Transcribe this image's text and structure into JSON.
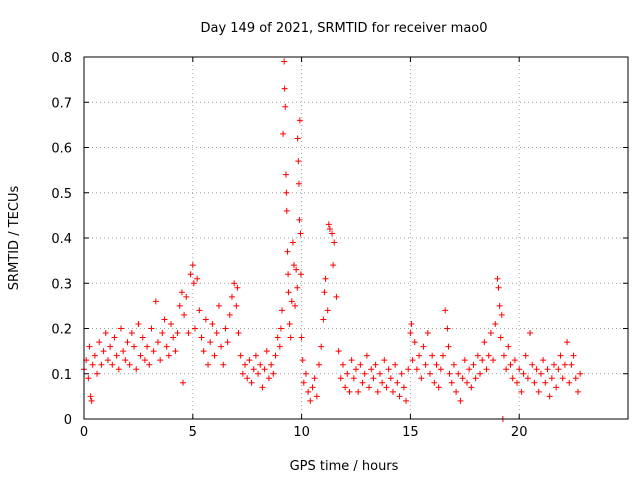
{
  "chart_data": {
    "type": "scatter",
    "title": "Day 149 of 2021, SRMTID for receiver mao0",
    "xlabel": "GPS time / hours",
    "ylabel": "SRMTID / TECUs",
    "xlim": [
      0,
      25
    ],
    "ylim": [
      0,
      0.8
    ],
    "x_ticks": [
      0,
      5,
      10,
      15,
      20
    ],
    "x_tick_labels": [
      "0",
      "5",
      "10",
      "15",
      "20"
    ],
    "y_ticks": [
      0,
      0.1,
      0.2,
      0.3,
      0.4,
      0.5,
      0.6,
      0.7,
      0.8
    ],
    "y_tick_labels": [
      "0",
      "0.1",
      "0.2",
      "0.3",
      "0.4",
      "0.5",
      "0.6",
      "0.7",
      "0.8"
    ],
    "grid": true,
    "marker": "plus",
    "color": "#ff0000",
    "series": [
      {
        "name": "SRMTID",
        "points": [
          [
            0.0,
            0.11
          ],
          [
            0.1,
            0.13
          ],
          [
            0.2,
            0.09
          ],
          [
            0.25,
            0.16
          ],
          [
            0.3,
            0.05
          ],
          [
            0.35,
            0.04
          ],
          [
            0.4,
            0.12
          ],
          [
            0.5,
            0.14
          ],
          [
            0.6,
            0.1
          ],
          [
            0.7,
            0.17
          ],
          [
            0.8,
            0.12
          ],
          [
            0.9,
            0.15
          ],
          [
            1.0,
            0.19
          ],
          [
            1.1,
            0.13
          ],
          [
            1.2,
            0.16
          ],
          [
            1.3,
            0.12
          ],
          [
            1.4,
            0.18
          ],
          [
            1.5,
            0.14
          ],
          [
            1.6,
            0.11
          ],
          [
            1.7,
            0.2
          ],
          [
            1.8,
            0.15
          ],
          [
            1.9,
            0.13
          ],
          [
            2.0,
            0.17
          ],
          [
            2.1,
            0.12
          ],
          [
            2.2,
            0.19
          ],
          [
            2.3,
            0.16
          ],
          [
            2.4,
            0.11
          ],
          [
            2.5,
            0.21
          ],
          [
            2.6,
            0.14
          ],
          [
            2.7,
            0.18
          ],
          [
            2.8,
            0.13
          ],
          [
            2.9,
            0.16
          ],
          [
            3.0,
            0.12
          ],
          [
            3.1,
            0.2
          ],
          [
            3.2,
            0.15
          ],
          [
            3.3,
            0.26
          ],
          [
            3.4,
            0.17
          ],
          [
            3.5,
            0.13
          ],
          [
            3.6,
            0.19
          ],
          [
            3.7,
            0.22
          ],
          [
            3.8,
            0.16
          ],
          [
            3.9,
            0.14
          ],
          [
            4.0,
            0.21
          ],
          [
            4.1,
            0.18
          ],
          [
            4.2,
            0.15
          ],
          [
            4.3,
            0.19
          ],
          [
            4.4,
            0.25
          ],
          [
            4.5,
            0.28
          ],
          [
            4.55,
            0.08
          ],
          [
            4.6,
            0.23
          ],
          [
            4.7,
            0.27
          ],
          [
            4.8,
            0.19
          ],
          [
            4.9,
            0.32
          ],
          [
            5.0,
            0.34
          ],
          [
            5.05,
            0.3
          ],
          [
            5.1,
            0.2
          ],
          [
            5.2,
            0.31
          ],
          [
            5.3,
            0.24
          ],
          [
            5.4,
            0.18
          ],
          [
            5.5,
            0.15
          ],
          [
            5.6,
            0.22
          ],
          [
            5.7,
            0.12
          ],
          [
            5.8,
            0.17
          ],
          [
            5.9,
            0.21
          ],
          [
            6.0,
            0.14
          ],
          [
            6.1,
            0.19
          ],
          [
            6.2,
            0.25
          ],
          [
            6.3,
            0.16
          ],
          [
            6.4,
            0.12
          ],
          [
            6.5,
            0.2
          ],
          [
            6.6,
            0.17
          ],
          [
            6.7,
            0.23
          ],
          [
            6.8,
            0.27
          ],
          [
            6.9,
            0.3
          ],
          [
            7.0,
            0.25
          ],
          [
            7.05,
            0.29
          ],
          [
            7.1,
            0.19
          ],
          [
            7.2,
            0.14
          ],
          [
            7.3,
            0.1
          ],
          [
            7.4,
            0.12
          ],
          [
            7.5,
            0.09
          ],
          [
            7.6,
            0.13
          ],
          [
            7.7,
            0.08
          ],
          [
            7.8,
            0.11
          ],
          [
            7.9,
            0.14
          ],
          [
            8.0,
            0.1
          ],
          [
            8.1,
            0.12
          ],
          [
            8.2,
            0.07
          ],
          [
            8.3,
            0.11
          ],
          [
            8.4,
            0.15
          ],
          [
            8.5,
            0.09
          ],
          [
            8.6,
            0.12
          ],
          [
            8.7,
            0.1
          ],
          [
            8.8,
            0.14
          ],
          [
            8.9,
            0.18
          ],
          [
            9.0,
            0.16
          ],
          [
            9.05,
            0.2
          ],
          [
            9.1,
            0.24
          ],
          [
            9.15,
            0.63
          ],
          [
            9.2,
            0.79
          ],
          [
            9.22,
            0.73
          ],
          [
            9.25,
            0.69
          ],
          [
            9.28,
            0.54
          ],
          [
            9.3,
            0.5
          ],
          [
            9.32,
            0.46
          ],
          [
            9.35,
            0.37
          ],
          [
            9.38,
            0.32
          ],
          [
            9.4,
            0.28
          ],
          [
            9.45,
            0.21
          ],
          [
            9.5,
            0.18
          ],
          [
            9.55,
            0.26
          ],
          [
            9.6,
            0.39
          ],
          [
            9.65,
            0.34
          ],
          [
            9.7,
            0.25
          ],
          [
            9.75,
            0.33
          ],
          [
            9.8,
            0.29
          ],
          [
            9.82,
            0.62
          ],
          [
            9.85,
            0.57
          ],
          [
            9.88,
            0.52
          ],
          [
            9.9,
            0.44
          ],
          [
            9.92,
            0.66
          ],
          [
            9.95,
            0.41
          ],
          [
            9.97,
            0.32
          ],
          [
            10.0,
            0.18
          ],
          [
            10.05,
            0.13
          ],
          [
            10.1,
            0.08
          ],
          [
            10.2,
            0.1
          ],
          [
            10.3,
            0.06
          ],
          [
            10.4,
            0.04
          ],
          [
            10.5,
            0.07
          ],
          [
            10.6,
            0.09
          ],
          [
            10.7,
            0.05
          ],
          [
            10.8,
            0.12
          ],
          [
            10.9,
            0.16
          ],
          [
            11.0,
            0.22
          ],
          [
            11.05,
            0.28
          ],
          [
            11.1,
            0.31
          ],
          [
            11.2,
            0.24
          ],
          [
            11.25,
            0.43
          ],
          [
            11.3,
            0.42
          ],
          [
            11.4,
            0.41
          ],
          [
            11.45,
            0.34
          ],
          [
            11.5,
            0.39
          ],
          [
            11.6,
            0.27
          ],
          [
            11.7,
            0.15
          ],
          [
            11.8,
            0.09
          ],
          [
            11.9,
            0.12
          ],
          [
            12.0,
            0.07
          ],
          [
            12.1,
            0.1
          ],
          [
            12.2,
            0.06
          ],
          [
            12.3,
            0.13
          ],
          [
            12.4,
            0.09
          ],
          [
            12.5,
            0.11
          ],
          [
            12.6,
            0.06
          ],
          [
            12.7,
            0.12
          ],
          [
            12.8,
            0.08
          ],
          [
            12.9,
            0.1
          ],
          [
            13.0,
            0.14
          ],
          [
            13.1,
            0.07
          ],
          [
            13.2,
            0.11
          ],
          [
            13.3,
            0.09
          ],
          [
            13.4,
            0.12
          ],
          [
            13.5,
            0.06
          ],
          [
            13.6,
            0.1
          ],
          [
            13.7,
            0.08
          ],
          [
            13.8,
            0.13
          ],
          [
            13.9,
            0.07
          ],
          [
            14.0,
            0.11
          ],
          [
            14.1,
            0.09
          ],
          [
            14.2,
            0.06
          ],
          [
            14.3,
            0.12
          ],
          [
            14.4,
            0.08
          ],
          [
            14.5,
            0.05
          ],
          [
            14.6,
            0.1
          ],
          [
            14.7,
            0.07
          ],
          [
            14.8,
            0.04
          ],
          [
            14.9,
            0.11
          ],
          [
            15.0,
            0.19
          ],
          [
            15.05,
            0.21
          ],
          [
            15.1,
            0.13
          ],
          [
            15.2,
            0.17
          ],
          [
            15.3,
            0.11
          ],
          [
            15.4,
            0.14
          ],
          [
            15.5,
            0.09
          ],
          [
            15.6,
            0.16
          ],
          [
            15.7,
            0.12
          ],
          [
            15.8,
            0.19
          ],
          [
            15.9,
            0.1
          ],
          [
            16.0,
            0.14
          ],
          [
            16.1,
            0.08
          ],
          [
            16.2,
            0.12
          ],
          [
            16.3,
            0.07
          ],
          [
            16.4,
            0.11
          ],
          [
            16.5,
            0.14
          ],
          [
            16.6,
            0.24
          ],
          [
            16.7,
            0.2
          ],
          [
            16.75,
            0.16
          ],
          [
            16.8,
            0.1
          ],
          [
            16.9,
            0.08
          ],
          [
            17.0,
            0.12
          ],
          [
            17.1,
            0.06
          ],
          [
            17.2,
            0.1
          ],
          [
            17.3,
            0.04
          ],
          [
            17.4,
            0.09
          ],
          [
            17.5,
            0.13
          ],
          [
            17.6,
            0.08
          ],
          [
            17.7,
            0.11
          ],
          [
            17.8,
            0.07
          ],
          [
            17.9,
            0.12
          ],
          [
            18.0,
            0.09
          ],
          [
            18.1,
            0.14
          ],
          [
            18.2,
            0.1
          ],
          [
            18.3,
            0.13
          ],
          [
            18.4,
            0.17
          ],
          [
            18.5,
            0.11
          ],
          [
            18.6,
            0.14
          ],
          [
            18.7,
            0.19
          ],
          [
            18.8,
            0.13
          ],
          [
            18.9,
            0.21
          ],
          [
            19.0,
            0.31
          ],
          [
            19.05,
            0.29
          ],
          [
            19.1,
            0.25
          ],
          [
            19.15,
            0.18
          ],
          [
            19.2,
            0.23
          ],
          [
            19.3,
            0.14
          ],
          [
            19.4,
            0.11
          ],
          [
            19.5,
            0.16
          ],
          [
            19.6,
            0.12
          ],
          [
            19.7,
            0.09
          ],
          [
            19.8,
            0.13
          ],
          [
            19.9,
            0.08
          ],
          [
            20.0,
            0.11
          ],
          [
            20.1,
            0.06
          ],
          [
            20.2,
            0.1
          ],
          [
            20.3,
            0.14
          ],
          [
            20.4,
            0.09
          ],
          [
            20.5,
            0.19
          ],
          [
            20.6,
            0.12
          ],
          [
            20.7,
            0.08
          ],
          [
            20.8,
            0.11
          ],
          [
            20.9,
            0.06
          ],
          [
            21.0,
            0.1
          ],
          [
            21.1,
            0.13
          ],
          [
            21.2,
            0.08
          ],
          [
            21.3,
            0.11
          ],
          [
            21.4,
            0.05
          ],
          [
            21.5,
            0.09
          ],
          [
            21.6,
            0.12
          ],
          [
            21.7,
            0.07
          ],
          [
            21.8,
            0.11
          ],
          [
            21.9,
            0.14
          ],
          [
            22.0,
            0.09
          ],
          [
            22.1,
            0.12
          ],
          [
            22.2,
            0.17
          ],
          [
            22.3,
            0.08
          ],
          [
            22.4,
            0.12
          ],
          [
            22.5,
            0.14
          ],
          [
            22.6,
            0.09
          ],
          [
            22.7,
            0.06
          ],
          [
            22.8,
            0.1
          ],
          [
            19.25,
            0.0
          ]
        ]
      }
    ]
  }
}
